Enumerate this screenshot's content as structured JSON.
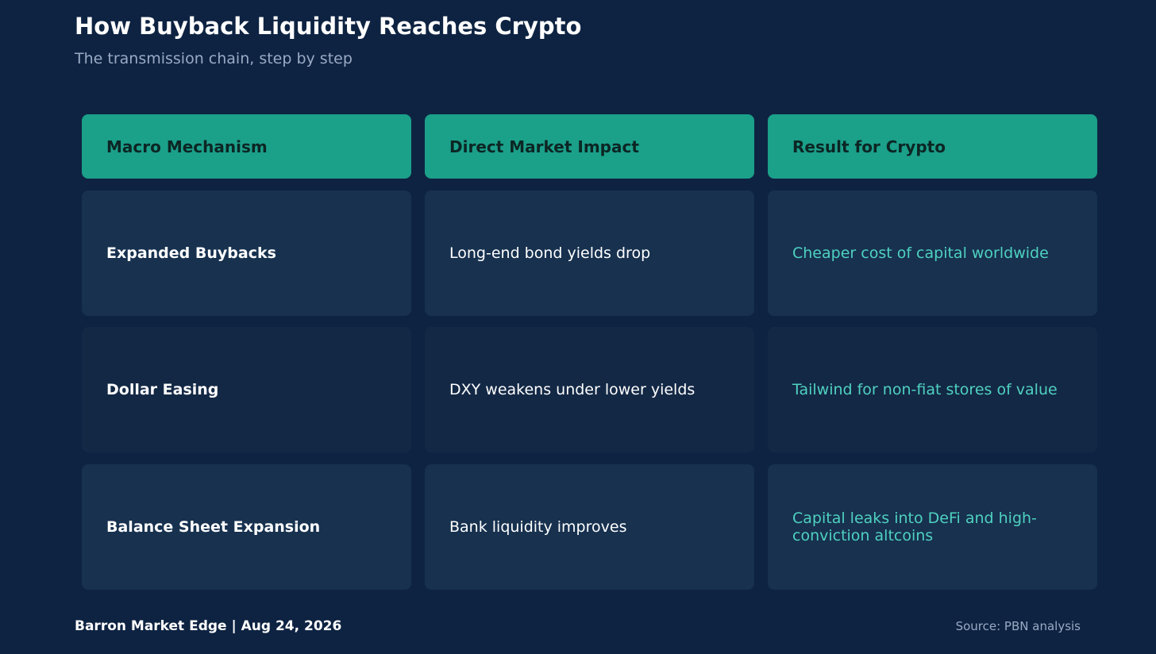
{
  "title": "How Buyback Liquidity Reaches Crypto",
  "subtitle": "The transmission chain, step by step",
  "table": {
    "headers": [
      "Macro Mechanism",
      "Direct Market Impact",
      "Result for Crypto"
    ],
    "rows": [
      {
        "mechanism": "Expanded Buybacks",
        "impact": "Long-end bond yields drop",
        "result": "Cheaper cost of capital worldwide"
      },
      {
        "mechanism": "Dollar Easing",
        "impact": "DXY weakens under lower yields",
        "result": "Tailwind for non-fiat stores of value"
      },
      {
        "mechanism": "Balance Sheet Expansion",
        "impact": "Bank liquidity improves",
        "result": "Capital leaks into DeFi and high-conviction altcoins"
      }
    ]
  },
  "footer": {
    "brand_date": "Barron Market Edge  |  Aug 24, 2026",
    "source": "Source: PBN analysis"
  },
  "colors": {
    "background": "#0e2342",
    "header_fill": "#1ba08a",
    "result_text": "#4fd1c0"
  }
}
